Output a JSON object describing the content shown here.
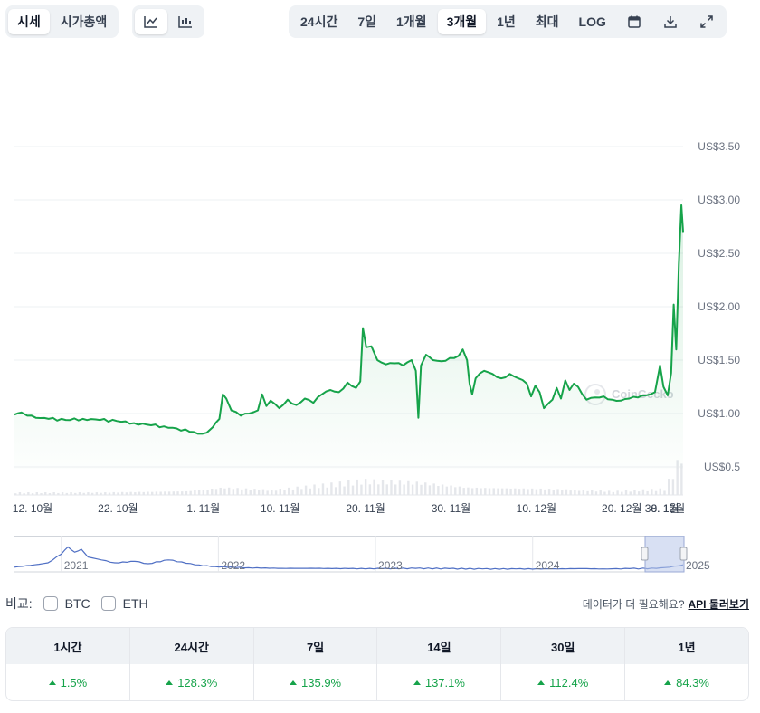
{
  "toolbar": {
    "view_tabs": [
      {
        "label": "시세",
        "active": true
      },
      {
        "label": "시가총액",
        "active": false
      }
    ],
    "chart_styles": [
      {
        "icon": "line-chart-icon",
        "active": true
      },
      {
        "icon": "candlestick-chart-icon",
        "active": false
      }
    ],
    "ranges": [
      {
        "label": "24시간",
        "active": false
      },
      {
        "label": "7일",
        "active": false
      },
      {
        "label": "1개월",
        "active": false
      },
      {
        "label": "3개월",
        "active": true
      },
      {
        "label": "1년",
        "active": false
      },
      {
        "label": "최대",
        "active": false
      },
      {
        "label": "LOG",
        "active": false
      }
    ],
    "tool_icons": [
      "calendar-icon",
      "download-icon",
      "expand-icon"
    ]
  },
  "chart_data": {
    "type": "line",
    "title": "",
    "xlabel": "",
    "ylabel": "",
    "y_tick_labels": [
      "US$3.50",
      "US$3.00",
      "US$2.50",
      "US$2.00",
      "US$1.50",
      "US$1.00",
      "US$0.5"
    ],
    "x_tick_labels": [
      "12. 10월",
      "22. 10월",
      "1. 11월",
      "10. 11월",
      "20. 11월",
      "30. 11월",
      "10. 12월",
      "20. 12월",
      "30. 12월",
      "8. 1월"
    ],
    "grid": true,
    "watermark": "CoinGecko",
    "colors": {
      "line": "#16a34a",
      "fill": "#16a34a",
      "grid": "#eef0f3"
    },
    "price_series": [
      [
        0,
        0.99
      ],
      [
        0.8,
        1.01
      ],
      [
        1.5,
        0.98
      ],
      [
        2.5,
        0.96
      ],
      [
        4,
        0.95
      ],
      [
        6,
        0.94
      ],
      [
        8,
        0.95
      ],
      [
        10,
        0.94
      ],
      [
        12,
        0.93
      ],
      [
        14,
        0.91
      ],
      [
        16,
        0.89
      ],
      [
        17.5,
        0.88
      ],
      [
        19,
        0.86
      ],
      [
        20.5,
        0.83
      ],
      [
        21.5,
        0.81
      ],
      [
        22.5,
        0.82
      ],
      [
        23.2,
        0.87
      ],
      [
        24,
        0.95
      ],
      [
        24.4,
        1.18
      ],
      [
        24.8,
        1.14
      ],
      [
        25.4,
        1.03
      ],
      [
        26.5,
        0.98
      ],
      [
        27.5,
        1.0
      ],
      [
        28.5,
        1.03
      ],
      [
        29,
        1.18
      ],
      [
        29.5,
        1.07
      ],
      [
        30,
        1.12
      ],
      [
        31,
        1.05
      ],
      [
        32,
        1.13
      ],
      [
        33,
        1.08
      ],
      [
        34,
        1.14
      ],
      [
        35,
        1.1
      ],
      [
        36,
        1.18
      ],
      [
        37,
        1.22
      ],
      [
        38,
        1.2
      ],
      [
        39,
        1.29
      ],
      [
        40,
        1.24
      ],
      [
        40.5,
        1.3
      ],
      [
        40.8,
        1.8
      ],
      [
        41.2,
        1.62
      ],
      [
        41.8,
        1.63
      ],
      [
        42.5,
        1.5
      ],
      [
        43.5,
        1.46
      ],
      [
        44.5,
        1.47
      ],
      [
        45.5,
        1.45
      ],
      [
        46.5,
        1.5
      ],
      [
        47,
        1.4
      ],
      [
        47.3,
        0.96
      ],
      [
        47.6,
        1.45
      ],
      [
        48.2,
        1.55
      ],
      [
        49,
        1.5
      ],
      [
        50,
        1.49
      ],
      [
        51,
        1.52
      ],
      [
        52,
        1.54
      ],
      [
        52.5,
        1.6
      ],
      [
        53,
        1.5
      ],
      [
        53.3,
        1.28
      ],
      [
        53.6,
        1.18
      ],
      [
        54,
        1.33
      ],
      [
        55,
        1.4
      ],
      [
        56,
        1.37
      ],
      [
        57,
        1.33
      ],
      [
        58,
        1.37
      ],
      [
        59,
        1.33
      ],
      [
        60,
        1.28
      ],
      [
        60.5,
        1.16
      ],
      [
        61,
        1.26
      ],
      [
        61.5,
        1.2
      ],
      [
        62,
        1.05
      ],
      [
        62.6,
        1.1
      ],
      [
        63,
        1.13
      ],
      [
        63.5,
        1.24
      ],
      [
        64,
        1.14
      ],
      [
        64.5,
        1.31
      ],
      [
        65,
        1.22
      ],
      [
        65.5,
        1.28
      ],
      [
        66,
        1.25
      ],
      [
        66.5,
        1.18
      ],
      [
        67,
        1.13
      ],
      [
        68,
        1.15
      ],
      [
        69,
        1.16
      ],
      [
        70,
        1.13
      ],
      [
        71,
        1.12
      ],
      [
        72,
        1.14
      ],
      [
        73,
        1.15
      ],
      [
        74,
        1.17
      ],
      [
        75,
        1.2
      ],
      [
        75.6,
        1.45
      ],
      [
        76,
        1.25
      ],
      [
        76.5,
        1.17
      ],
      [
        76.9,
        1.38
      ],
      [
        77.2,
        2.02
      ],
      [
        77.5,
        1.6
      ],
      [
        77.8,
        2.4
      ],
      [
        78.1,
        2.95
      ],
      [
        78.3,
        2.7
      ]
    ],
    "volume_series": [
      [
        0,
        0.02
      ],
      [
        10,
        0.02
      ],
      [
        20,
        0.03
      ],
      [
        24.4,
        0.06
      ],
      [
        30,
        0.04
      ],
      [
        40.8,
        0.12
      ],
      [
        47.3,
        0.1
      ],
      [
        53,
        0.06
      ],
      [
        62,
        0.05
      ],
      [
        70,
        0.03
      ],
      [
        76,
        0.05
      ],
      [
        77.8,
        0.3
      ],
      [
        78.3,
        0.45
      ]
    ],
    "navigator": {
      "year_labels": [
        "2021",
        "2022",
        "2023",
        "2024",
        "2025"
      ],
      "series": [
        [
          0,
          0.1
        ],
        [
          3,
          0.18
        ],
        [
          5,
          0.25
        ],
        [
          7,
          0.55
        ],
        [
          8,
          0.8
        ],
        [
          9,
          0.62
        ],
        [
          10,
          0.72
        ],
        [
          11,
          0.45
        ],
        [
          13,
          0.35
        ],
        [
          15,
          0.25
        ],
        [
          18,
          0.3
        ],
        [
          20,
          0.22
        ],
        [
          23,
          0.35
        ],
        [
          25,
          0.28
        ],
        [
          27,
          0.18
        ],
        [
          30,
          0.12
        ],
        [
          35,
          0.08
        ],
        [
          40,
          0.06
        ],
        [
          45,
          0.06
        ],
        [
          50,
          0.05
        ],
        [
          55,
          0.05
        ],
        [
          60,
          0.06
        ],
        [
          65,
          0.05
        ],
        [
          70,
          0.04
        ],
        [
          75,
          0.04
        ],
        [
          80,
          0.04
        ],
        [
          85,
          0.05
        ],
        [
          88,
          0.04
        ],
        [
          92,
          0.05
        ],
        [
          96,
          0.06
        ],
        [
          98,
          0.1
        ],
        [
          100,
          0.18
        ]
      ]
    }
  },
  "compare": {
    "label": "비교:",
    "options": [
      {
        "label": "BTC",
        "checked": false
      },
      {
        "label": "ETH",
        "checked": false
      }
    ]
  },
  "more_data": {
    "text": "데이터가 더 필요해요?",
    "link": "API 둘러보기"
  },
  "performance": {
    "headers": [
      "1시간",
      "24시간",
      "7일",
      "14일",
      "30일",
      "1년"
    ],
    "values": [
      "1.5%",
      "128.3%",
      "135.9%",
      "137.1%",
      "112.4%",
      "84.3%"
    ],
    "trend": "up"
  }
}
